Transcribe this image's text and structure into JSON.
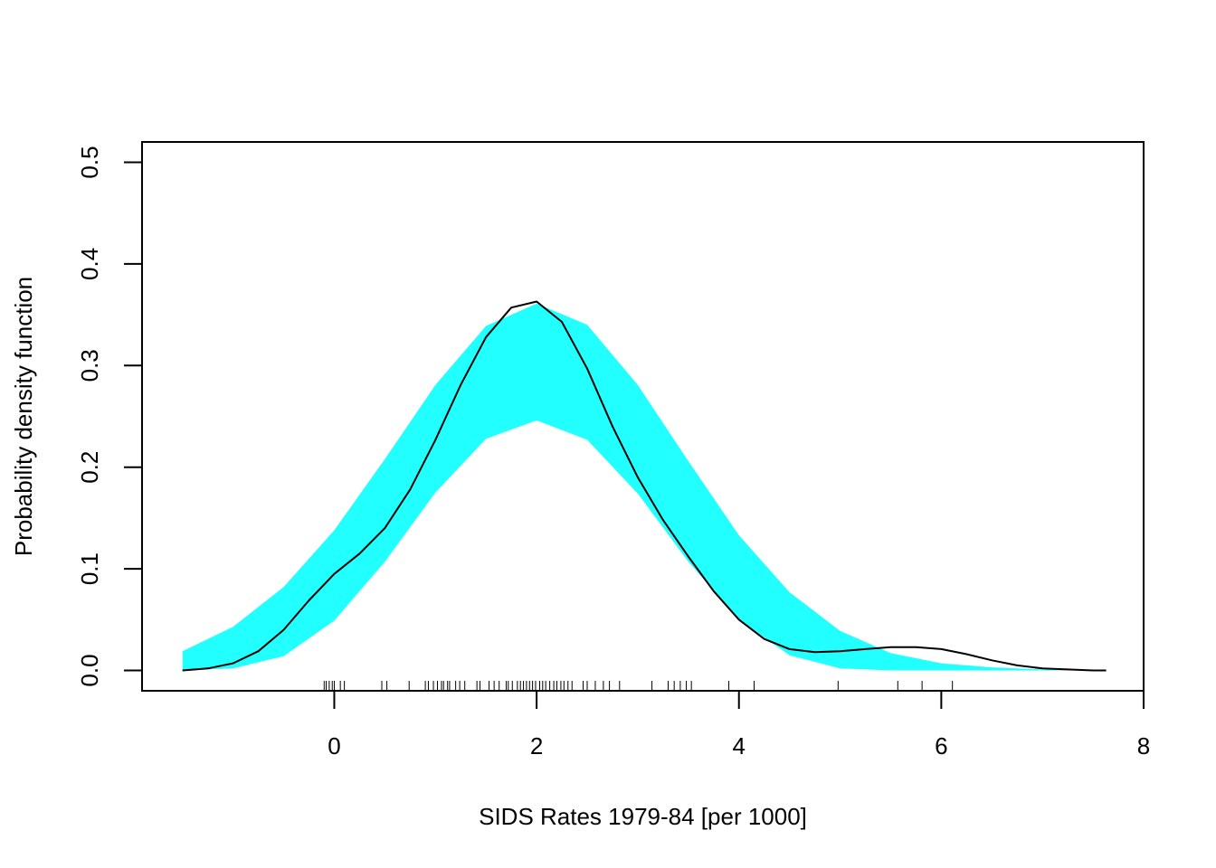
{
  "chart_data": {
    "type": "area",
    "title": "",
    "xlabel": "SIDS Rates 1979-84 [per 1000]",
    "ylabel": "Probability density function",
    "xlim": [
      -1.9,
      8.0
    ],
    "ylim": [
      -0.02,
      0.52
    ],
    "x_ticks": [
      0,
      2,
      4,
      6,
      8
    ],
    "y_ticks": [
      0.0,
      0.1,
      0.2,
      0.3,
      0.4,
      0.5
    ],
    "x_tick_labels": [
      "0",
      "2",
      "4",
      "6",
      "8"
    ],
    "y_tick_labels": [
      "0.0",
      "0.1",
      "0.2",
      "0.3",
      "0.4",
      "0.5"
    ],
    "grid": false,
    "legend": "none",
    "band": {
      "color": "#22FFFF",
      "x": [
        -1.5,
        -1.0,
        -0.5,
        0.0,
        0.5,
        1.0,
        1.5,
        2.0,
        2.5,
        3.0,
        3.5,
        4.0,
        4.5,
        5.0,
        5.5,
        6.0,
        6.5,
        7.0,
        7.5
      ],
      "upper": [
        0.019,
        0.043,
        0.082,
        0.138,
        0.208,
        0.281,
        0.339,
        0.361,
        0.34,
        0.281,
        0.206,
        0.133,
        0.077,
        0.039,
        0.017,
        0.007,
        0.003,
        0.001,
        0.0
      ],
      "lower": [
        0.0,
        0.002,
        0.014,
        0.049,
        0.107,
        0.175,
        0.228,
        0.246,
        0.227,
        0.174,
        0.107,
        0.05,
        0.015,
        0.002,
        0.0,
        0.0,
        0.0,
        0.0,
        0.0
      ]
    },
    "series": [
      {
        "color": "#000000",
        "x": [
          -1.5,
          -1.25,
          -1.0,
          -0.75,
          -0.5,
          -0.25,
          0.0,
          0.25,
          0.5,
          0.75,
          1.0,
          1.25,
          1.5,
          1.75,
          2.0,
          2.25,
          2.5,
          2.75,
          3.0,
          3.25,
          3.5,
          3.75,
          4.0,
          4.25,
          4.5,
          4.75,
          5.0,
          5.25,
          5.5,
          5.75,
          6.0,
          6.25,
          6.5,
          6.75,
          7.0,
          7.25,
          7.5,
          7.63
        ],
        "values": [
          0.0,
          0.002,
          0.007,
          0.019,
          0.04,
          0.069,
          0.095,
          0.115,
          0.14,
          0.178,
          0.227,
          0.281,
          0.328,
          0.357,
          0.363,
          0.343,
          0.297,
          0.24,
          0.19,
          0.148,
          0.112,
          0.078,
          0.05,
          0.031,
          0.021,
          0.018,
          0.019,
          0.021,
          0.023,
          0.023,
          0.021,
          0.016,
          0.01,
          0.005,
          0.002,
          0.001,
          0.0,
          0.0
        ]
      }
    ],
    "rug": [
      -0.1,
      -0.08,
      -0.05,
      -0.02,
      0.0,
      0.06,
      0.1,
      0.47,
      0.52,
      0.74,
      0.9,
      0.93,
      0.98,
      1.02,
      1.06,
      1.08,
      1.12,
      1.14,
      1.2,
      1.24,
      1.29,
      1.41,
      1.44,
      1.53,
      1.58,
      1.63,
      1.7,
      1.72,
      1.76,
      1.81,
      1.84,
      1.87,
      1.9,
      1.93,
      1.96,
      1.99,
      2.03,
      2.06,
      2.09,
      2.13,
      2.17,
      2.2,
      2.24,
      2.27,
      2.31,
      2.35,
      2.46,
      2.5,
      2.58,
      2.66,
      2.72,
      2.82,
      3.14,
      3.3,
      3.36,
      3.42,
      3.48,
      3.53,
      3.9,
      4.15,
      4.98,
      5.57,
      5.81,
      6.11
    ]
  }
}
